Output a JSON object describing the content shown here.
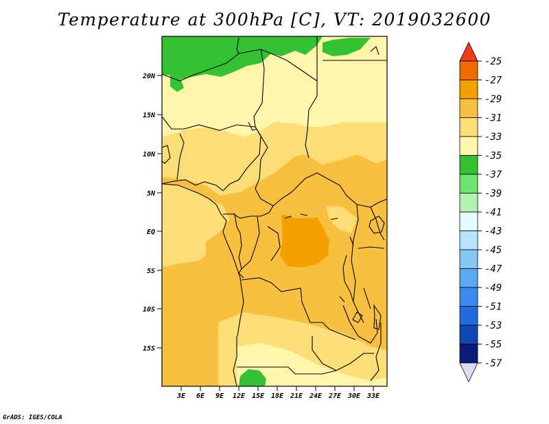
{
  "title": "Temperature at 300hPa [C], VT: 2019032600",
  "credit": "GrADS: IGES/COLA",
  "map": {
    "region": "Central Africa",
    "lon_range": [
      0,
      35
    ],
    "lat_range": [
      -19,
      24
    ],
    "lat_labels": [
      "20N",
      "15N",
      "10N",
      "5N",
      "EQ",
      "5S",
      "10S",
      "15S"
    ],
    "lon_labels": [
      "3E",
      "6E",
      "9E",
      "12E",
      "15E",
      "18E",
      "21E",
      "24E",
      "27E",
      "30E",
      "33E"
    ]
  },
  "colorbar": {
    "labels": [
      "-25",
      "-27",
      "-29",
      "-31",
      "-33",
      "-35",
      "-37",
      "-39",
      "-41",
      "-43",
      "-45",
      "-47",
      "-49",
      "-51",
      "-53",
      "-55",
      "-57"
    ],
    "colors": [
      "#f03c14",
      "#f26a00",
      "#f4a100",
      "#f8c040",
      "#fddd78",
      "#fff6ac",
      "#34c233",
      "#6ee36d",
      "#b3f2b3",
      "#e6fbff",
      "#b5e5ff",
      "#86c8f5",
      "#5aaaf2",
      "#3a8aee",
      "#2069dd",
      "#1047b7",
      "#0a1c7a",
      "#dcdcf8"
    ]
  }
}
